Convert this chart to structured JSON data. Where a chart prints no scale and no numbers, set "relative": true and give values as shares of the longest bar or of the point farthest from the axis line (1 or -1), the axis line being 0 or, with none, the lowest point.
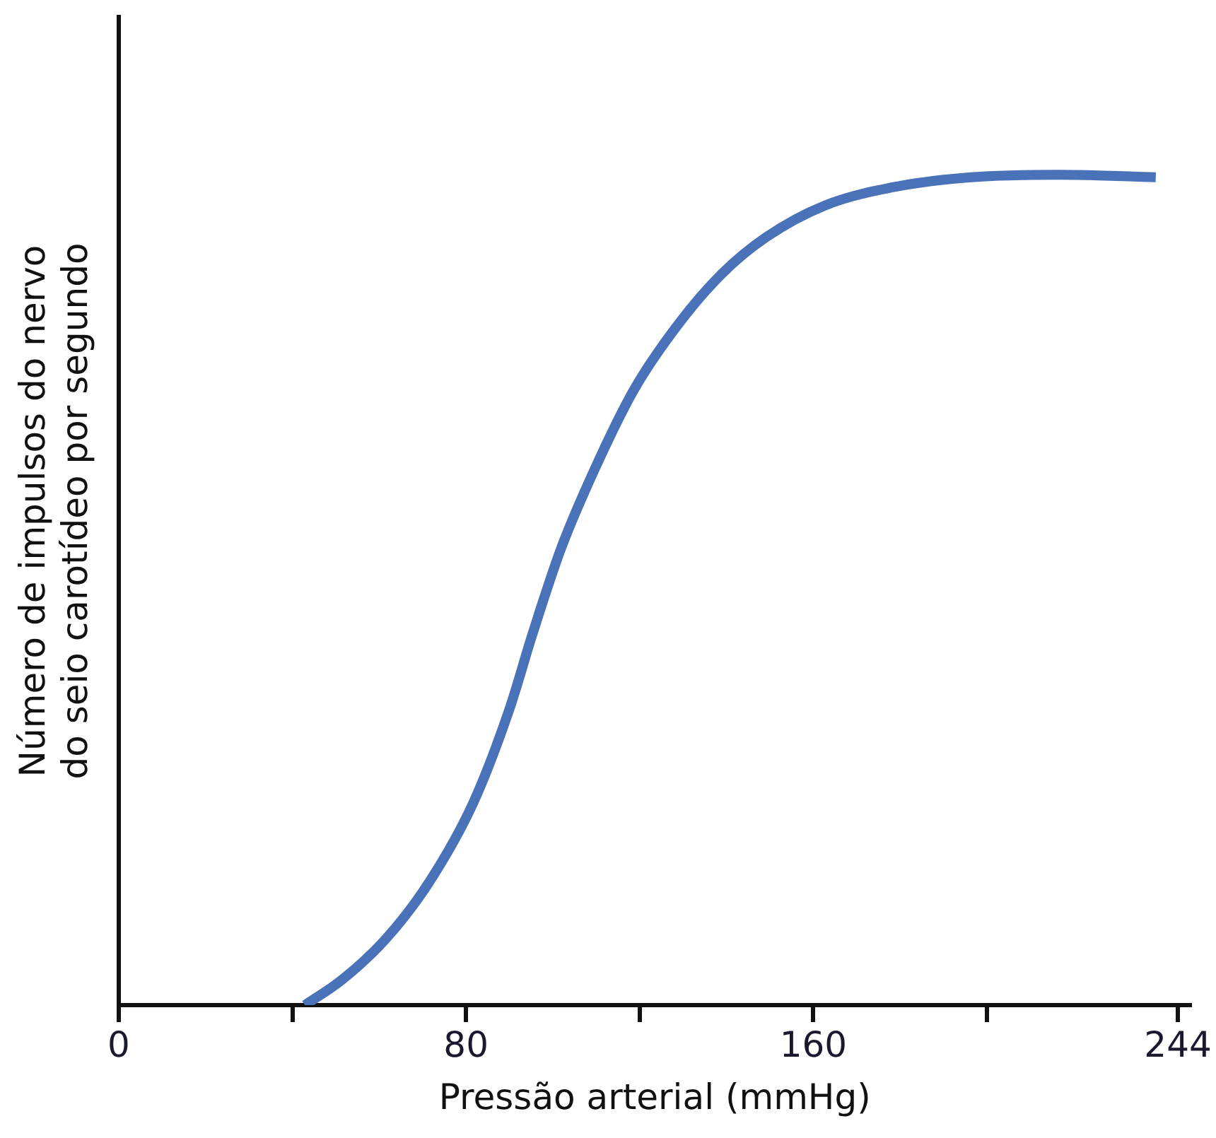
{
  "chart_data": {
    "type": "line",
    "relative": true,
    "xlabel": "Pressão arterial (mmHg)",
    "ylabel": "Número de impulsos do nervo\ndo seio carotídeo por segundo",
    "xlim": [
      0,
      247
    ],
    "xticks": [
      0,
      {
        "value": 40,
        "label": null
      },
      80,
      {
        "value": 120,
        "label": null
      },
      160,
      {
        "value": 200,
        "label": null
      },
      244
    ],
    "grid": false,
    "legend": false,
    "marker": "none",
    "line_style": "solid",
    "series": [
      {
        "color": "#4a72b8",
        "x": [
          42.9,
          51.3,
          61.4,
          71.5,
          81.7,
          90.1,
          95.2,
          101.9,
          110.4,
          118.8,
          128.9,
          139.0,
          149.2,
          162.7,
          179.5,
          196.4,
          216.7,
          238.9
        ],
        "values": [
          0,
          0.03,
          0.079,
          0.148,
          0.244,
          0.358,
          0.445,
          0.55,
          0.654,
          0.742,
          0.82,
          0.881,
          0.925,
          0.963,
          0.986,
          0.997,
          1,
          0.997
        ]
      }
    ]
  }
}
